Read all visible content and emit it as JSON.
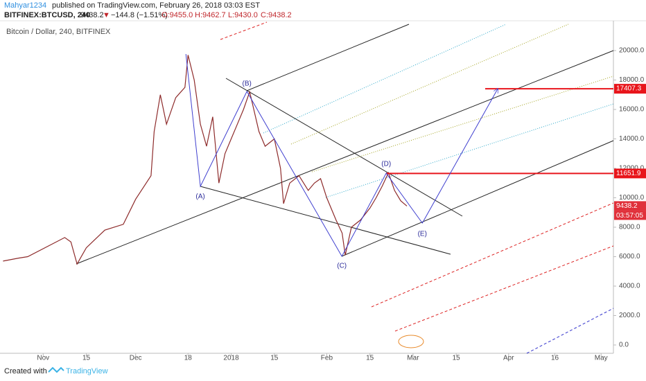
{
  "header": {
    "author": "Mahyar1234",
    "published": "published on TradingView.com, February 26, 2018 03:03 EST",
    "symbol": "BITFINEX:BTCUSD, 240",
    "price": "9438.2",
    "arrow": "▼",
    "change": "−144.8 (−1.51%)",
    "open": "O:9455.0",
    "high": "H:9462.7",
    "low": "L:9430.0",
    "close": "C:9438.2"
  },
  "chart_data": {
    "type": "line",
    "title": "Bitcoin / Dollar, 240, BITFINEX",
    "x": [
      -13,
      -8,
      -5,
      7,
      9,
      11,
      14,
      20,
      26,
      30,
      35,
      36,
      38,
      40,
      43,
      46,
      47,
      49,
      51,
      53,
      55,
      57,
      59,
      61,
      63,
      65,
      67,
      70,
      72,
      75,
      77,
      78,
      80,
      83,
      86,
      88,
      90,
      92,
      95,
      97,
      98,
      100,
      103,
      106,
      108,
      110,
      112,
      114,
      116,
      118
    ],
    "series": [
      {
        "color": "#8d2a2a",
        "values": [
          5700,
          5900,
          6000,
          7300,
          7000,
          5500,
          6600,
          7800,
          8200,
          9900,
          11500,
          14500,
          17000,
          15000,
          16800,
          17500,
          19700,
          18000,
          15000,
          13500,
          15500,
          11000,
          13000,
          14000,
          15000,
          16000,
          17200,
          14500,
          13500,
          14000,
          12000,
          9600,
          11000,
          11500,
          10500,
          11000,
          11300,
          10000,
          8500,
          7600,
          6100,
          8000,
          8500,
          9300,
          10000,
          10800,
          11700,
          10500,
          9800,
          9438.2
        ]
      }
    ],
    "pattern": {
      "color": "#3f3fcf",
      "labels": [
        null,
        "(A)",
        "(B)",
        "(C)",
        "(D)",
        "(E)",
        null
      ],
      "x": [
        46.3,
        51,
        66.1,
        96.9,
        111.3,
        123,
        147.5
      ],
      "y": [
        19765,
        10776,
        17224,
        6024,
        11671,
        8282,
        17412
      ]
    },
    "levels": [
      17407.3,
      11651.9
    ],
    "level_color": "#e8151b",
    "last_price": 9438.2,
    "countdown": "03:57:05",
    "xlim": [
      -14,
      185
    ],
    "ylim": [
      -565,
      22024
    ],
    "xticks": [
      {
        "value": 0,
        "label": "Nov"
      },
      {
        "value": 14,
        "label": "15"
      },
      {
        "value": 30,
        "label": "Dec"
      },
      {
        "value": 47,
        "label": "18"
      },
      {
        "value": 61,
        "label": "2018"
      },
      {
        "value": 75,
        "label": "15"
      },
      {
        "value": 92,
        "label": "Feb"
      },
      {
        "value": 106,
        "label": "15"
      },
      {
        "value": 120,
        "label": "Mar"
      },
      {
        "value": 134,
        "label": "15"
      },
      {
        "value": 151,
        "label": "Apr"
      },
      {
        "value": 166,
        "label": "16"
      },
      {
        "value": 181,
        "label": "May"
      }
    ],
    "yticks": [
      {
        "value": 0,
        "label": "0.0"
      },
      {
        "value": 2000,
        "label": "2000.0"
      },
      {
        "value": 4000,
        "label": "4000.0"
      },
      {
        "value": 6000,
        "label": "6000.0"
      },
      {
        "value": 8000,
        "label": "8000.0"
      },
      {
        "value": 10000,
        "label": "10000.0"
      },
      {
        "value": 12000,
        "label": "12000.0"
      },
      {
        "value": 14000,
        "label": "14000.0"
      },
      {
        "value": 16000,
        "label": "16000.0"
      },
      {
        "value": 18000,
        "label": "18000.0"
      },
      {
        "value": 20000,
        "label": "20000.0"
      }
    ],
    "grid": false
  },
  "footer": {
    "created": "Created with",
    "brand": "TradingView"
  }
}
